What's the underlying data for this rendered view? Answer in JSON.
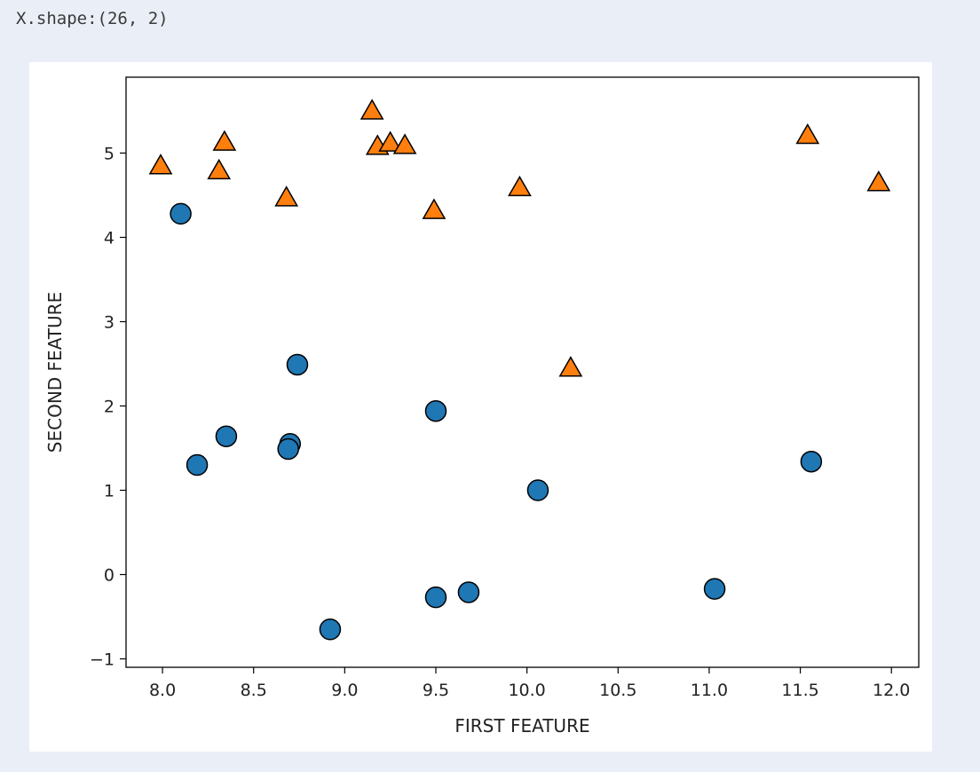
{
  "cell_output": {
    "text": "X.shape:(26, 2)"
  },
  "chart_data": {
    "type": "scatter",
    "title": "",
    "xlabel": "FIRST FEATURE",
    "ylabel": "SECOND FEATURE",
    "xlim": [
      7.8,
      12.15
    ],
    "ylim": [
      -1.1,
      5.9
    ],
    "x_ticks": [
      8.0,
      8.5,
      9.0,
      9.5,
      10.0,
      10.5,
      11.0,
      11.5,
      12.0
    ],
    "x_tick_labels": [
      "8.0",
      "8.5",
      "9.0",
      "9.5",
      "10.0",
      "10.5",
      "11.0",
      "11.5",
      "12.0"
    ],
    "y_ticks": [
      -1,
      0,
      1,
      2,
      3,
      4,
      5
    ],
    "y_tick_labels": [
      "−1",
      "0",
      "1",
      "2",
      "3",
      "4",
      "5"
    ],
    "grid": false,
    "legend": "none",
    "series": [
      {
        "marker": "circle",
        "color": "#1f77b4",
        "points": [
          [
            8.1,
            4.28
          ],
          [
            8.19,
            1.3
          ],
          [
            8.35,
            1.64
          ],
          [
            8.74,
            2.49
          ],
          [
            8.7,
            1.55
          ],
          [
            8.69,
            1.49
          ],
          [
            8.92,
            -0.65
          ],
          [
            9.5,
            1.94
          ],
          [
            9.5,
            -0.27
          ],
          [
            9.68,
            -0.21
          ],
          [
            10.06,
            1.0
          ],
          [
            11.03,
            -0.17
          ],
          [
            11.56,
            1.34
          ]
        ]
      },
      {
        "marker": "triangle",
        "color": "#ff7f0e",
        "points": [
          [
            7.99,
            4.85
          ],
          [
            8.31,
            4.79
          ],
          [
            8.34,
            5.13
          ],
          [
            8.68,
            4.47
          ],
          [
            9.15,
            5.5
          ],
          [
            9.18,
            5.08
          ],
          [
            9.25,
            5.12
          ],
          [
            9.33,
            5.09
          ],
          [
            9.49,
            4.32
          ],
          [
            9.96,
            4.59
          ],
          [
            10.24,
            2.45
          ],
          [
            11.54,
            5.21
          ],
          [
            11.93,
            4.65
          ]
        ]
      }
    ]
  }
}
